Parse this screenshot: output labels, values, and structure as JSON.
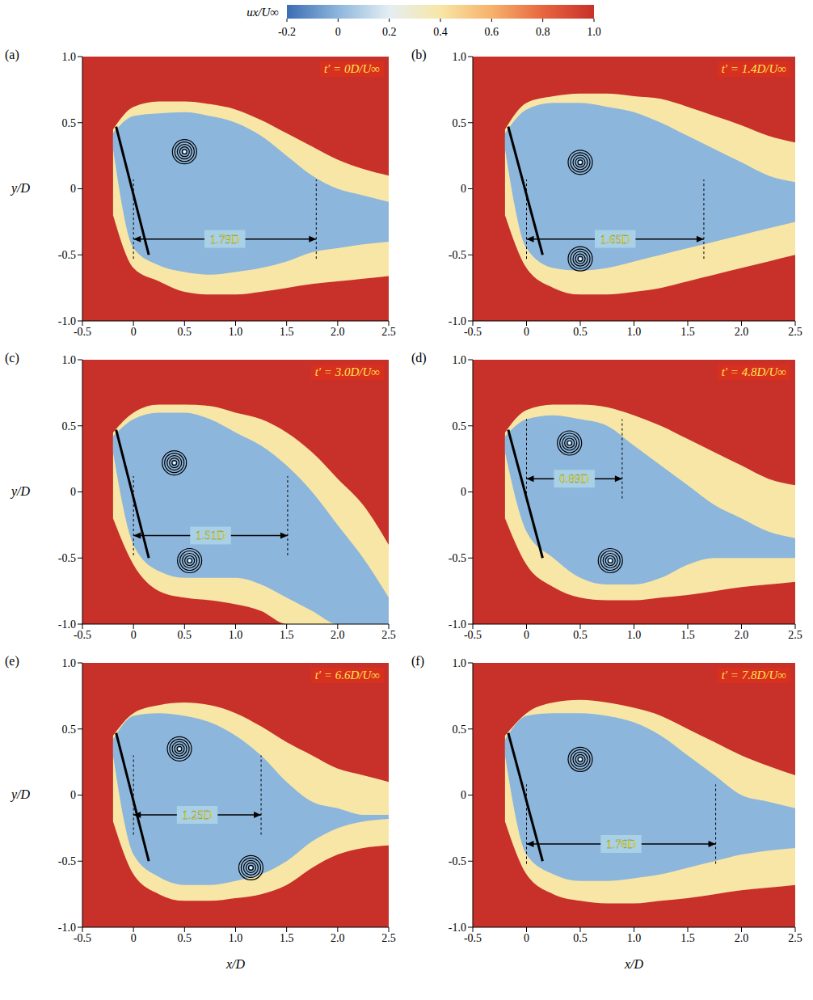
{
  "colorbar": {
    "label": "ux/U∞",
    "range": [
      -0.2,
      1.0
    ],
    "ticks": [
      -0.2,
      0,
      0.2,
      0.4,
      0.6,
      0.8,
      {
        "value": 1,
        "label": "1.0"
      }
    ]
  },
  "chart_data": [
    {
      "type": "contour",
      "panel": "(a)",
      "annotation": "t′ = 0D/U∞",
      "ylabel": "y/D",
      "xlim": [
        -0.5,
        2.5
      ],
      "ylim": [
        -1,
        1
      ],
      "xticks": [
        -0.5,
        0,
        0.5,
        {
          "value": 1,
          "label": "1.0"
        },
        1.5,
        {
          "value": 2,
          "label": "2.0"
        },
        2.5
      ],
      "yticks": [
        {
          "value": -1,
          "label": "-1.0"
        },
        -0.5,
        0,
        0.5,
        {
          "value": 1,
          "label": "1.0"
        }
      ],
      "grid": false,
      "contours": [
        {
          "level": 0.6,
          "x": [
            -0.2,
            0,
            0.25,
            0.5,
            0.75,
            1,
            1.25,
            1.5,
            1.75,
            2,
            2.25,
            2.5
          ],
          "low": [
            -0.2,
            -0.6,
            -0.7,
            -0.78,
            -0.8,
            -0.8,
            -0.78,
            -0.75,
            -0.72,
            -0.7,
            -0.68,
            -0.66
          ],
          "high": [
            0.45,
            0.62,
            0.66,
            0.66,
            0.64,
            0.6,
            0.52,
            0.42,
            0.32,
            0.22,
            0.15,
            0.1
          ]
        },
        {
          "level": 0.2,
          "x": [
            -0.2,
            0,
            0.25,
            0.5,
            0.75,
            1,
            1.25,
            1.5,
            1.75,
            2,
            2.25,
            2.5
          ],
          "low": [
            0.3,
            -0.45,
            -0.58,
            -0.63,
            -0.65,
            -0.63,
            -0.6,
            -0.55,
            -0.48,
            -0.45,
            -0.42,
            -0.4
          ],
          "high": [
            0.42,
            0.55,
            0.57,
            0.58,
            0.55,
            0.5,
            0.4,
            0.25,
            0.1,
            0.0,
            -0.05,
            -0.1
          ]
        }
      ],
      "plate": {
        "x": [
          -0.17,
          0.15
        ],
        "y": [
          0.47,
          -0.5
        ]
      },
      "vortex_centers": {
        "x": [
          0.5
        ],
        "y": [
          0.28
        ]
      },
      "recirculation": {
        "value": 1.79,
        "label": "1.79D",
        "y": -0.38
      }
    },
    {
      "type": "contour",
      "panel": "(b)",
      "annotation": "t′ = 1.4D/U∞",
      "xlim": [
        -0.5,
        2.5
      ],
      "ylim": [
        -1,
        1
      ],
      "xticks": [
        -0.5,
        0,
        0.5,
        {
          "value": 1,
          "label": "1.0"
        },
        1.5,
        {
          "value": 2,
          "label": "2.0"
        },
        2.5
      ],
      "yticks": [
        {
          "value": -1,
          "label": "-1.0"
        },
        -0.5,
        0,
        0.5,
        {
          "value": 1,
          "label": "1.0"
        }
      ],
      "grid": false,
      "contours": [
        {
          "level": 0.6,
          "x": [
            -0.2,
            0,
            0.25,
            0.5,
            0.75,
            1,
            1.25,
            1.5,
            1.75,
            2,
            2.25,
            2.5
          ],
          "low": [
            -0.2,
            -0.6,
            -0.75,
            -0.8,
            -0.8,
            -0.78,
            -0.75,
            -0.7,
            -0.65,
            -0.6,
            -0.55,
            -0.5
          ],
          "high": [
            0.45,
            0.65,
            0.7,
            0.72,
            0.72,
            0.7,
            0.68,
            0.62,
            0.55,
            0.48,
            0.4,
            0.35
          ]
        },
        {
          "level": 0.2,
          "x": [
            -0.2,
            0,
            0.25,
            0.5,
            0.75,
            1,
            1.25,
            1.5,
            1.75,
            2,
            2.25,
            2.5
          ],
          "low": [
            0.3,
            -0.45,
            -0.6,
            -0.62,
            -0.6,
            -0.55,
            -0.5,
            -0.45,
            -0.4,
            -0.35,
            -0.3,
            -0.25
          ],
          "high": [
            0.42,
            0.6,
            0.65,
            0.65,
            0.62,
            0.58,
            0.5,
            0.4,
            0.3,
            0.2,
            0.1,
            0.05
          ]
        }
      ],
      "plate": {
        "x": [
          -0.17,
          0.15
        ],
        "y": [
          0.47,
          -0.5
        ]
      },
      "vortex_centers": {
        "x": [
          0.5,
          0.5
        ],
        "y": [
          0.2,
          -0.53
        ]
      },
      "recirculation": {
        "value": 1.65,
        "label": "1.65D",
        "y": -0.38
      }
    },
    {
      "type": "contour",
      "panel": "(c)",
      "annotation": "t′ = 3.0D/U∞",
      "ylabel": "y/D",
      "xlim": [
        -0.5,
        2.5
      ],
      "ylim": [
        -1,
        1
      ],
      "xticks": [
        -0.5,
        0,
        0.5,
        {
          "value": 1,
          "label": "1.0"
        },
        1.5,
        {
          "value": 2,
          "label": "2.0"
        },
        2.5
      ],
      "yticks": [
        {
          "value": -1,
          "label": "-1.0"
        },
        -0.5,
        0,
        0.5,
        {
          "value": 1,
          "label": "1.0"
        }
      ],
      "grid": false,
      "contours": [
        {
          "level": 0.6,
          "x": [
            -0.2,
            0,
            0.25,
            0.5,
            0.75,
            1,
            1.25,
            1.5,
            1.75,
            2,
            2.25,
            2.5
          ],
          "low": [
            -0.2,
            -0.55,
            -0.75,
            -0.8,
            -0.82,
            -0.85,
            -0.9,
            -1,
            -1,
            -1,
            -1,
            -1
          ],
          "high": [
            0.45,
            0.6,
            0.66,
            0.66,
            0.65,
            0.6,
            0.55,
            0.45,
            0.3,
            0.1,
            -0.1,
            -0.4
          ]
        },
        {
          "level": 0.2,
          "x": [
            -0.2,
            0,
            0.25,
            0.5,
            0.75,
            1,
            1.25,
            1.5,
            1.75,
            2,
            2.25,
            2.5
          ],
          "low": [
            0.3,
            -0.4,
            -0.6,
            -0.65,
            -0.65,
            -0.65,
            -0.7,
            -0.8,
            -0.9,
            -1,
            -1,
            -1
          ],
          "high": [
            0.42,
            0.55,
            0.6,
            0.6,
            0.55,
            0.45,
            0.35,
            0.2,
            0.0,
            -0.25,
            -0.5,
            -0.8
          ]
        }
      ],
      "plate": {
        "x": [
          -0.17,
          0.15
        ],
        "y": [
          0.47,
          -0.5
        ]
      },
      "vortex_centers": {
        "x": [
          0.4,
          0.55
        ],
        "y": [
          0.22,
          -0.52
        ]
      },
      "recirculation": {
        "value": 1.51,
        "label": "1.51D",
        "y": -0.33
      }
    },
    {
      "type": "contour",
      "panel": "(d)",
      "annotation": "t′ = 4.8D/U∞",
      "xlim": [
        -0.5,
        2.5
      ],
      "ylim": [
        -1,
        1
      ],
      "xticks": [
        -0.5,
        0,
        0.5,
        {
          "value": 1,
          "label": "1.0"
        },
        1.5,
        {
          "value": 2,
          "label": "2.0"
        },
        2.5
      ],
      "yticks": [
        {
          "value": -1,
          "label": "-1.0"
        },
        -0.5,
        0,
        0.5,
        {
          "value": 1,
          "label": "1.0"
        }
      ],
      "grid": false,
      "contours": [
        {
          "level": 0.6,
          "x": [
            -0.2,
            0,
            0.25,
            0.5,
            0.75,
            1,
            1.25,
            1.5,
            1.75,
            2,
            2.25,
            2.5
          ],
          "low": [
            -0.2,
            -0.55,
            -0.72,
            -0.8,
            -0.82,
            -0.82,
            -0.8,
            -0.78,
            -0.75,
            -0.72,
            -0.7,
            -0.68
          ],
          "high": [
            0.45,
            0.62,
            0.66,
            0.66,
            0.64,
            0.58,
            0.5,
            0.4,
            0.3,
            0.2,
            0.1,
            0.05
          ]
        },
        {
          "level": 0.2,
          "x": [
            -0.2,
            0,
            0.25,
            0.5,
            0.75,
            1,
            1.25,
            1.5,
            1.75,
            2,
            2.25,
            2.5
          ],
          "low": [
            0.3,
            -0.3,
            -0.5,
            -0.65,
            -0.7,
            -0.7,
            -0.65,
            -0.55,
            -0.5,
            -0.5,
            -0.5,
            -0.5
          ],
          "high": [
            0.42,
            0.55,
            0.58,
            0.55,
            0.5,
            0.35,
            0.2,
            0.05,
            -0.1,
            -0.2,
            -0.3,
            -0.35
          ]
        }
      ],
      "plate": {
        "x": [
          -0.17,
          0.15
        ],
        "y": [
          0.47,
          -0.5
        ]
      },
      "vortex_centers": {
        "x": [
          0.4,
          0.78
        ],
        "y": [
          0.37,
          -0.52
        ]
      },
      "recirculation": {
        "value": 0.89,
        "label": "0.89D",
        "y": 0.1
      }
    },
    {
      "type": "contour",
      "panel": "(e)",
      "annotation": "t′ = 6.6D/U∞",
      "xlabel": "x/D",
      "ylabel": "y/D",
      "xlim": [
        -0.5,
        2.5
      ],
      "ylim": [
        -1,
        1
      ],
      "xticks": [
        -0.5,
        0,
        0.5,
        {
          "value": 1,
          "label": "1.0"
        },
        1.5,
        {
          "value": 2,
          "label": "2.0"
        },
        2.5
      ],
      "yticks": [
        {
          "value": -1,
          "label": "-1.0"
        },
        -0.5,
        0,
        0.5,
        {
          "value": 1,
          "label": "1.0"
        }
      ],
      "grid": false,
      "contours": [
        {
          "level": 0.6,
          "x": [
            -0.2,
            0,
            0.25,
            0.5,
            0.75,
            1,
            1.25,
            1.5,
            1.75,
            2,
            2.25,
            2.5
          ],
          "low": [
            -0.2,
            -0.6,
            -0.75,
            -0.8,
            -0.8,
            -0.78,
            -0.75,
            -0.68,
            -0.55,
            -0.45,
            -0.4,
            -0.38
          ],
          "high": [
            0.45,
            0.62,
            0.68,
            0.7,
            0.68,
            0.62,
            0.52,
            0.4,
            0.3,
            0.2,
            0.15,
            0.1
          ]
        },
        {
          "level": 0.2,
          "x": [
            -0.2,
            0,
            0.25,
            0.5,
            0.75,
            1,
            1.25,
            1.5,
            1.75,
            2,
            2.25,
            2.5
          ],
          "low": [
            0.3,
            -0.45,
            -0.62,
            -0.68,
            -0.68,
            -0.65,
            -0.6,
            -0.5,
            -0.35,
            -0.25,
            -0.2,
            -0.18
          ],
          "high": [
            0.42,
            0.6,
            0.62,
            0.6,
            0.55,
            0.45,
            0.3,
            0.1,
            -0.05,
            -0.1,
            -0.15,
            -0.15
          ]
        }
      ],
      "plate": {
        "x": [
          -0.17,
          0.15
        ],
        "y": [
          0.47,
          -0.5
        ]
      },
      "vortex_centers": {
        "x": [
          0.45,
          1.15
        ],
        "y": [
          0.35,
          -0.55
        ]
      },
      "recirculation": {
        "value": 1.25,
        "label": "1.25D",
        "y": -0.15
      }
    },
    {
      "type": "contour",
      "panel": "(f)",
      "annotation": "t′ = 7.8D/U∞",
      "xlabel": "x/D",
      "xlim": [
        -0.5,
        2.5
      ],
      "ylim": [
        -1,
        1
      ],
      "xticks": [
        -0.5,
        0,
        0.5,
        {
          "value": 1,
          "label": "1.0"
        },
        1.5,
        {
          "value": 2,
          "label": "2.0"
        },
        2.5
      ],
      "yticks": [
        {
          "value": -1,
          "label": "-1.0"
        },
        -0.5,
        0,
        0.5,
        {
          "value": 1,
          "label": "1.0"
        }
      ],
      "grid": false,
      "contours": [
        {
          "level": 0.6,
          "x": [
            -0.2,
            0,
            0.25,
            0.5,
            0.75,
            1,
            1.25,
            1.5,
            1.75,
            2,
            2.25,
            2.5
          ],
          "low": [
            -0.2,
            -0.6,
            -0.75,
            -0.8,
            -0.82,
            -0.82,
            -0.8,
            -0.78,
            -0.75,
            -0.72,
            -0.7,
            -0.68
          ],
          "high": [
            0.45,
            0.62,
            0.7,
            0.72,
            0.7,
            0.66,
            0.6,
            0.5,
            0.4,
            0.3,
            0.22,
            0.15
          ]
        },
        {
          "level": 0.2,
          "x": [
            -0.2,
            0,
            0.25,
            0.5,
            0.75,
            1,
            1.25,
            1.5,
            1.75,
            2,
            2.25,
            2.5
          ],
          "low": [
            0.3,
            -0.45,
            -0.6,
            -0.65,
            -0.65,
            -0.63,
            -0.6,
            -0.55,
            -0.5,
            -0.45,
            -0.42,
            -0.4
          ],
          "high": [
            0.42,
            0.6,
            0.62,
            0.62,
            0.6,
            0.55,
            0.45,
            0.3,
            0.15,
            0.0,
            -0.05,
            -0.1
          ]
        }
      ],
      "plate": {
        "x": [
          -0.17,
          0.15
        ],
        "y": [
          0.47,
          -0.5
        ]
      },
      "vortex_centers": {
        "x": [
          0.5
        ],
        "y": [
          0.27
        ]
      },
      "recirculation": {
        "value": 1.76,
        "label": "1.76D",
        "y": -0.37
      }
    }
  ]
}
